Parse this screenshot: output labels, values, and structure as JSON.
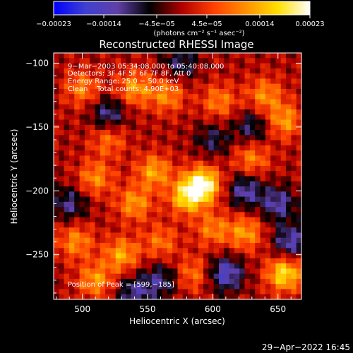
{
  "chart_data": {
    "type": "heatmap",
    "title": "Reconstructed RHESSI Image",
    "xlabel": "Heliocentric X (arcsec)",
    "ylabel": "Heliocentric Y (arcsec)",
    "xlim": [
      478,
      668
    ],
    "ylim": [
      -285,
      -92
    ],
    "x_ticks": [
      500,
      550,
      600,
      650
    ],
    "y_ticks": [
      -100,
      -150,
      -200,
      -250
    ],
    "x_tick_labels": [
      "500",
      "550",
      "600",
      "650"
    ],
    "y_tick_labels": [
      "−100",
      "−150",
      "−200",
      "−250"
    ],
    "colorbar": {
      "min": -0.00023,
      "max": 0.00023,
      "ticks": [
        -0.00023,
        -0.00014,
        -4.5e-05,
        4.5e-05,
        0.00014,
        0.00023
      ],
      "tick_labels": [
        "−0.00023",
        "−0.00014",
        "−4.5e−05",
        "4.5e−05",
        "0.00014",
        "0.00023"
      ],
      "unit_label": "(photons cm⁻² s⁻¹ asec⁻²)",
      "colormap": [
        "#0000ff",
        "#4040d0",
        "#6040a8",
        "#000000",
        "#b00000",
        "#ff4000",
        "#ff9000",
        "#ffe000",
        "#ffffff"
      ]
    },
    "annotations": [
      "9−Mar−2003 05:34:08.000 to 05:40:08.000",
      "Detectors: 3F 4F 5F 6F 7F 8F, Att 0",
      "Energy Range: 25.0 − 50.0 keV",
      "Clean    Total counts: 4.90E+03"
    ],
    "peak_label": "Position of Peak = [599,−185]",
    "peak": [
      599,
      -185
    ],
    "sources": [
      {
        "x": 592,
        "y": -195,
        "peak": 0.00023
      },
      {
        "x": 580,
        "y": -205,
        "peak": 0.00016
      },
      {
        "x": 555,
        "y": -185,
        "peak": 0.00013
      },
      {
        "x": 540,
        "y": -210,
        "peak": 0.00012
      },
      {
        "x": 510,
        "y": -190,
        "peak": 0.00011
      },
      {
        "x": 500,
        "y": -120,
        "peak": 0.0001
      },
      {
        "x": 540,
        "y": -120,
        "peak": 0.00012
      },
      {
        "x": 565,
        "y": -125,
        "peak": 0.00011
      },
      {
        "x": 605,
        "y": -130,
        "peak": 0.0001
      },
      {
        "x": 640,
        "y": -125,
        "peak": 0.00011
      },
      {
        "x": 655,
        "y": -145,
        "peak": 0.00012
      },
      {
        "x": 600,
        "y": -230,
        "peak": 0.0001
      },
      {
        "x": 530,
        "y": -250,
        "peak": 0.00013
      },
      {
        "x": 560,
        "y": -240,
        "peak": 9e-05
      },
      {
        "x": 625,
        "y": -233,
        "peak": 0.00012
      },
      {
        "x": 655,
        "y": -265,
        "peak": 0.00018
      },
      {
        "x": 510,
        "y": -270,
        "peak": 0.00012
      },
      {
        "x": 585,
        "y": -265,
        "peak": 9e-05
      },
      {
        "x": 630,
        "y": -175,
        "peak": 0.0001
      },
      {
        "x": 520,
        "y": -160,
        "peak": 9e-05
      },
      {
        "x": 495,
        "y": -240,
        "peak": 0.00011
      },
      {
        "x": 650,
        "y": -210,
        "peak": -0.00012
      },
      {
        "x": 610,
        "y": -265,
        "peak": -0.00015
      },
      {
        "x": 560,
        "y": -270,
        "peak": -0.0001
      },
      {
        "x": 520,
        "y": -140,
        "peak": -0.00011
      },
      {
        "x": 630,
        "y": -150,
        "peak": -9e-05
      },
      {
        "x": 625,
        "y": -200,
        "peak": -0.00012
      },
      {
        "x": 490,
        "y": -210,
        "peak": -0.0001
      },
      {
        "x": 540,
        "y": -280,
        "peak": -0.00011
      },
      {
        "x": 600,
        "y": -160,
        "peak": -8e-05
      },
      {
        "x": 660,
        "y": -240,
        "peak": -0.00013
      },
      {
        "x": 575,
        "y": -100,
        "peak": -9e-05
      }
    ]
  },
  "timestamp": "29−Apr−2022 16:45"
}
